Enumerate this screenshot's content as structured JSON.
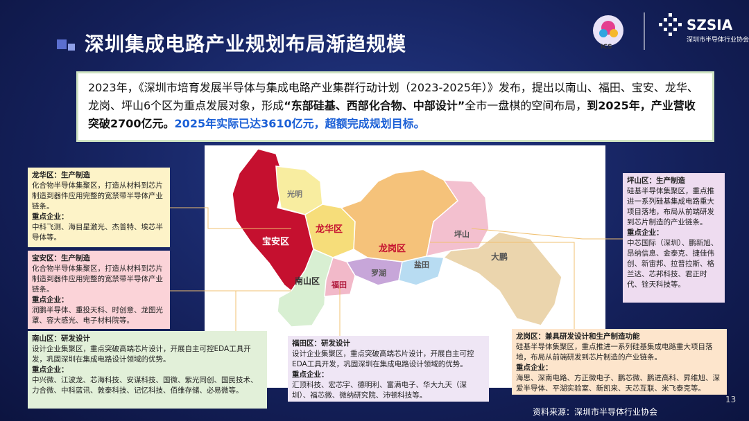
{
  "header": {
    "title": "深圳集成电路产业规划布局渐趋规模",
    "logo_left": "ICS",
    "logo_right": "SZSIA",
    "logo_right_sub": "深圳市半导体行业协会"
  },
  "intro": [
    {
      "text": "2023年，《深圳市培育发展半导体与集成电路产业集群行动计划（2023-2025年）》发布，提出以南山、福田、宝安、龙华、龙岗、坪山6个区为重点发展对象，形成",
      "style": "normal"
    },
    {
      "text": "“东部硅基、西部化合物、中部设计”",
      "style": "bold"
    },
    {
      "text": "全市一盘棋的空间布局，",
      "style": "normal"
    },
    {
      "text": "到2025年，产业营收突破2700亿元。",
      "style": "bold"
    },
    {
      "text": "2025年实际已达3610亿元，超额完成规划目标。",
      "style": "blue"
    }
  ],
  "map": {
    "labels": [
      "光明",
      "龙华区",
      "宝安区",
      "南山区",
      "福田",
      "罗湖",
      "盐田",
      "龙岗区",
      "坪山",
      "大鹏"
    ]
  },
  "boxes": [
    {
      "title": "龙华区：生产制造",
      "desc": "化合物半导体集聚区，打造从材料到芯片制造到器件应用完整的宽禁带半导体产业链条。",
      "key": "重点企业：",
      "companies": "中科飞测、海目星激光、杰普特、埃芯半导体等。"
    },
    {
      "title": "宝安区：生产制造",
      "desc": "化合物半导体集聚区，打造从材料到芯片制造到器件应用完整的宽禁带半导体产业链条。",
      "key": "重点企业：",
      "companies": "润鹏半导体、重投天科、时创意、龙图光罩、容大感光、电子材料院等。"
    },
    {
      "title": "南山区：研发设计",
      "desc": "设计企业集聚区，重点突破高端芯片设计，开展自主可控EDA工具开发，巩固深圳在集成电路设计领域的优势。",
      "key": "重点企业：",
      "companies": "中兴微、江波龙、芯海科技、安谋科技、国微、紫光同创、国民技术、力合微、中科蓝讯、敦泰科技、记忆科技、佰维存储、必易微等。"
    },
    {
      "title": "福田区：研发设计",
      "desc": "设计企业集聚区，重点突破高端芯片设计，开展自主可控EDA工具开发，巩固深圳在集成电路设计领域的优势。",
      "key": "重点企业：",
      "companies": "汇顶科技、宏芯宇、德明利、富满电子、华大九天（深圳）、福芯微、微纳研究院、沛顿科技等。"
    },
    {
      "title": "坪山区：生产制造",
      "desc": "硅基半导体集聚区，重点推进一系列硅基集成电路重大项目落地，布局从前端研发到芯片制造的产业链条。",
      "key": "重点企业：",
      "companies": "中芯国际（深圳）、鹏新旭、昂纳信息、金泰克、捷佳伟创、新宙邦、拉普拉斯、格兰达、芯邦科技、君正时代、铨天科技等。"
    },
    {
      "title": "龙岗区：兼具研发设计和生产制造功能",
      "desc": "硅基半导体集聚区，重点推进一系列硅基集成电路重大项目落地，布局从前端研发到芯片制造的产业链条。",
      "key": "重点企业：",
      "companies": "海思、深南电路、方正微电子、鹏芯微、鹏进高科、昇维旭、深爱半导体、平湖实验室、新凯来、天芯互联、米飞泰克等。"
    }
  ],
  "footer": {
    "source": "资料来源：深圳市半导体行业协会",
    "page": "13"
  }
}
